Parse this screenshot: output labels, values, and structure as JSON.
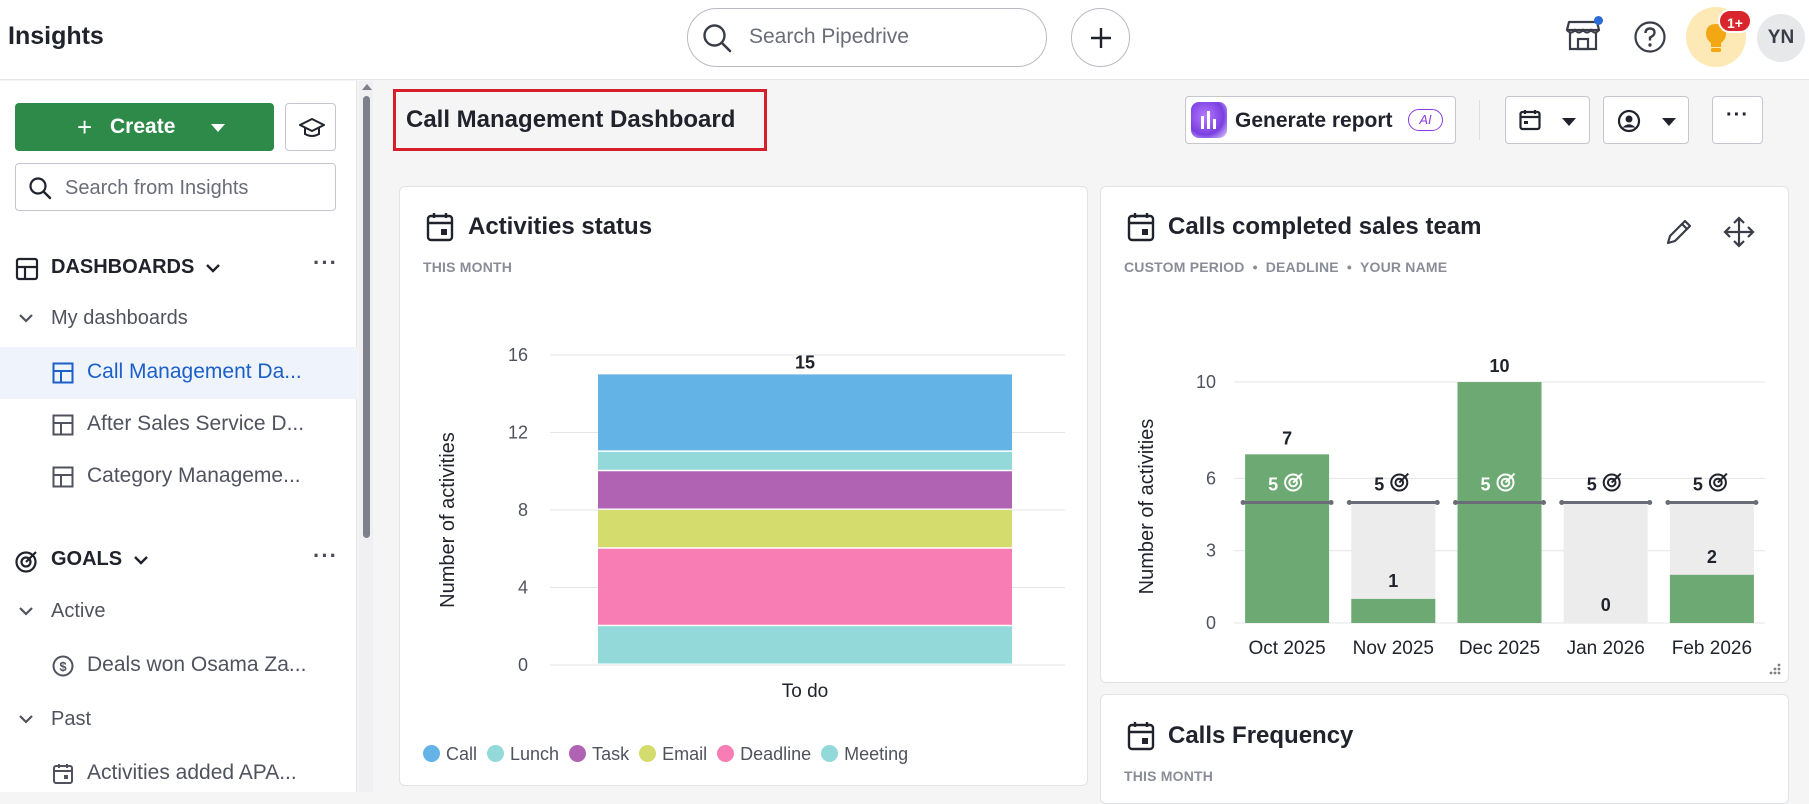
{
  "app": {
    "title": "Insights",
    "search_placeholder": "Search Pipedrive",
    "notification_badge": "1+",
    "avatar_initials": "YN"
  },
  "sidebar": {
    "create_label": "Create",
    "search_placeholder": "Search from Insights",
    "dashboards_heading": "DASHBOARDS",
    "my_dashboards_label": "My dashboards",
    "dashboards": [
      {
        "label": "Call Management Da...",
        "active": true
      },
      {
        "label": "After Sales Service D...",
        "active": false
      },
      {
        "label": "Category Manageme...",
        "active": false
      }
    ],
    "goals_heading": "GOALS",
    "active_label": "Active",
    "active_goals": [
      {
        "label": "Deals won Osama Za...",
        "icon": "dollar-circle-icon"
      }
    ],
    "past_label": "Past",
    "past_goals": [
      {
        "label": "Activities added APA...",
        "icon": "calendar-icon"
      }
    ]
  },
  "header": {
    "dashboard_title": "Call Management Dashboard",
    "generate_report_label": "Generate report",
    "ai_badge": "AI"
  },
  "cards": {
    "activities_status": {
      "title": "Activities status",
      "subtitle": "THIS MONTH"
    },
    "calls_completed": {
      "title": "Calls completed sales team",
      "subtitle_parts": [
        "CUSTOM PERIOD",
        "DEADLINE",
        "YOUR NAME"
      ]
    },
    "calls_frequency": {
      "title": "Calls Frequency",
      "subtitle": "THIS MONTH"
    }
  },
  "chart_data": [
    {
      "type": "bar",
      "stacked": true,
      "title": "Activities status",
      "ylabel": "Number of activities",
      "categories": [
        "To do"
      ],
      "ylim": [
        0,
        16
      ],
      "yticks": [
        0,
        4,
        8,
        12,
        16
      ],
      "total_label": "15",
      "series": [
        {
          "name": "Meeting",
          "color": "#93d9d9",
          "values": [
            2
          ]
        },
        {
          "name": "Deadline",
          "color": "#f77db4",
          "values": [
            4
          ]
        },
        {
          "name": "Email",
          "color": "#d5dc6e",
          "values": [
            2
          ]
        },
        {
          "name": "Task",
          "color": "#b063b3",
          "values": [
            2
          ]
        },
        {
          "name": "Lunch",
          "color": "#93d9d9",
          "values": [
            1
          ]
        },
        {
          "name": "Call",
          "color": "#63b3e6",
          "values": [
            4
          ]
        }
      ],
      "legend": [
        {
          "name": "Call",
          "color": "#63b3e6"
        },
        {
          "name": "Lunch",
          "color": "#93d9d9"
        },
        {
          "name": "Task",
          "color": "#b063b3"
        },
        {
          "name": "Email",
          "color": "#d5dc6e"
        },
        {
          "name": "Deadline",
          "color": "#f77db4"
        },
        {
          "name": "Meeting",
          "color": "#93d9d9"
        }
      ]
    },
    {
      "type": "bar",
      "title": "Calls completed sales team",
      "ylabel": "Number of activities",
      "categories": [
        "Oct 2025",
        "Nov 2025",
        "Dec 2025",
        "Jan 2026",
        "Feb 2026"
      ],
      "values": [
        7,
        1,
        10,
        0,
        2
      ],
      "goal": [
        5,
        5,
        5,
        5,
        5
      ],
      "ylim": [
        0,
        10.5
      ],
      "yticks": [
        0,
        3,
        6,
        10
      ],
      "colors": {
        "bar": "#6daa73",
        "goal_bg": "#ececec",
        "goal_line": "#6a6d78"
      }
    }
  ]
}
